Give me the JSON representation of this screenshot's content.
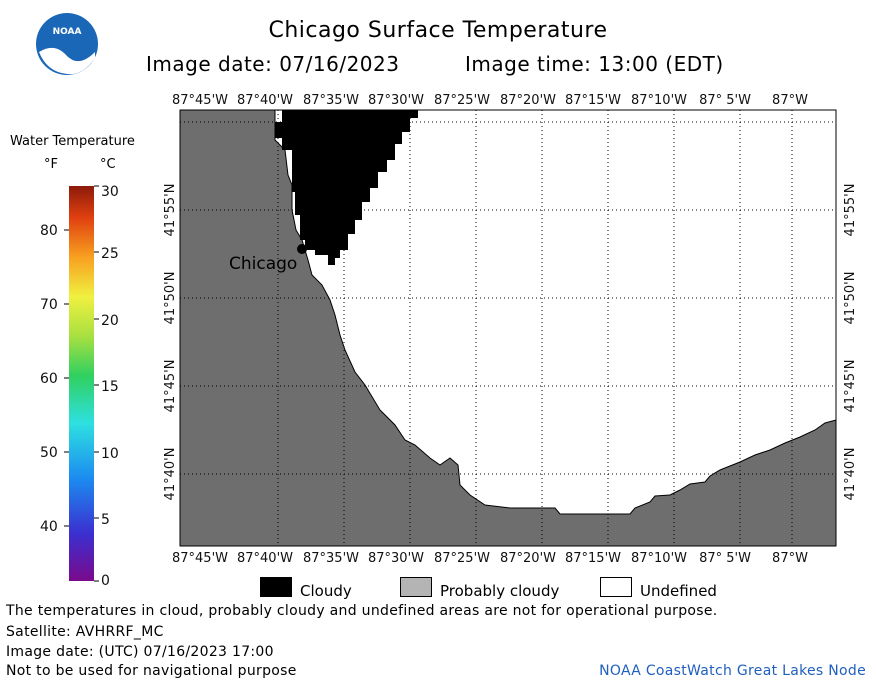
{
  "header": {
    "title": "Chicago Surface Temperature",
    "image_date": "Image date: 07/16/2023",
    "image_time": "Image time: 13:00 (EDT)"
  },
  "logo": {
    "text": "NOAA"
  },
  "colorbar": {
    "title": "Water Temperature",
    "unit_f": "°F",
    "unit_c": "°C",
    "f_ticks": [
      "80",
      "70",
      "60",
      "50",
      "40"
    ],
    "c_ticks": [
      "30",
      "25",
      "20",
      "15",
      "10",
      "5",
      "0"
    ]
  },
  "map": {
    "lon_labels": [
      "87°45'W",
      "87°40'W",
      "87°35'W",
      "87°30'W",
      "87°25'W",
      "87°20'W",
      "87°15'W",
      "87°10'W",
      "87° 5'W",
      "87°W"
    ],
    "lat_labels": [
      "41°55'N",
      "41°50'N",
      "41°45'N",
      "41°40'N"
    ],
    "city_label": "Chicago",
    "colors": {
      "land": "#6e6e6e",
      "cloudy": "#000000",
      "undefined": "#ffffff",
      "probably_cloudy": "#b4b4b4"
    }
  },
  "key": {
    "cloudy": "Cloudy",
    "probably_cloudy": "Probably cloudy",
    "undefined": "Undefined"
  },
  "footer": {
    "note": "The temperatures in cloud, probably cloudy and undefined areas are not for operational purpose.",
    "satellite": "Satellite: AVHRRF_MC",
    "utc_date": "Image date: (UTC) 07/16/2023  17:00",
    "nav_warning": "Not to be used for navigational purpose",
    "credit": "NOAA CoastWatch Great Lakes Node"
  }
}
